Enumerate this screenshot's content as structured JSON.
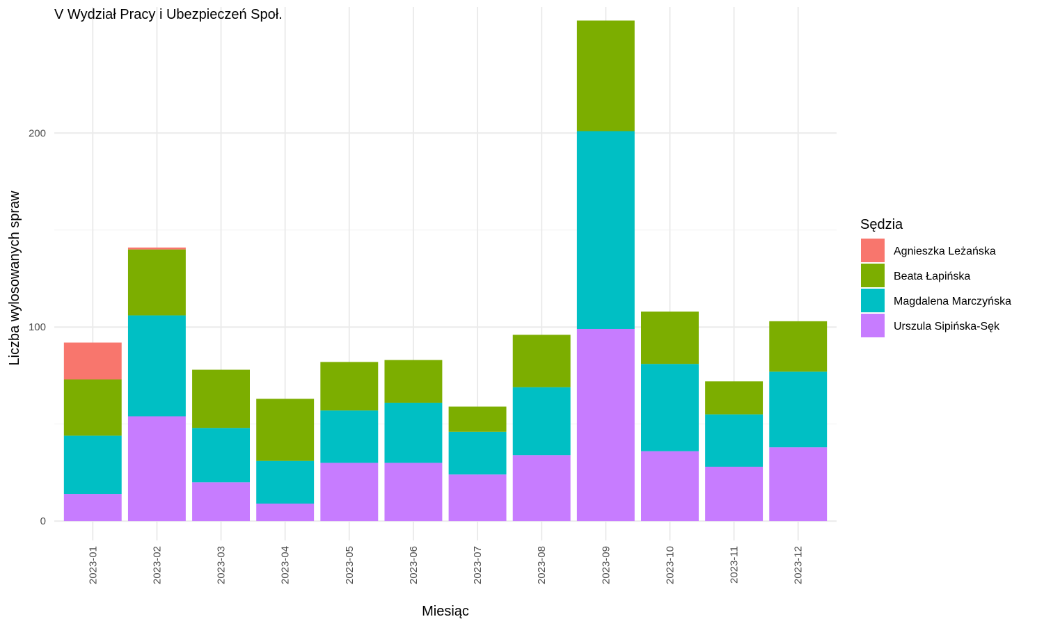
{
  "chart_data": {
    "type": "bar",
    "stacked": true,
    "title": "V Wydział Pracy i Ubezpieczeń Społ.",
    "xlabel": "Miesiąc",
    "ylabel": "Liczba wylosowanych spraw",
    "ylim": [
      -10,
      265
    ],
    "yticks": [
      0,
      100,
      200
    ],
    "grid": true,
    "legend": {
      "title": "Sędzia",
      "position": "right"
    },
    "categories": [
      "2023-01",
      "2023-02",
      "2023-03",
      "2023-04",
      "2023-05",
      "2023-06",
      "2023-07",
      "2023-08",
      "2023-09",
      "2023-10",
      "2023-11",
      "2023-12"
    ],
    "series": [
      {
        "name": "Urszula Sipińska-Sęk",
        "color": "#C77CFF",
        "values": [
          14,
          54,
          20,
          9,
          30,
          30,
          24,
          34,
          99,
          36,
          28,
          38
        ]
      },
      {
        "name": "Magdalena Marczyńska",
        "color": "#00BFC4",
        "values": [
          30,
          52,
          28,
          22,
          27,
          31,
          22,
          35,
          102,
          45,
          27,
          39
        ]
      },
      {
        "name": "Beata Łapińska",
        "color": "#7CAE00",
        "values": [
          29,
          34,
          30,
          32,
          25,
          22,
          13,
          27,
          57,
          27,
          17,
          26
        ]
      },
      {
        "name": "Agnieszka Leżańska",
        "color": "#F8766D",
        "values": [
          19,
          1,
          0,
          0,
          0,
          0,
          0,
          0,
          0,
          0,
          0,
          0
        ]
      }
    ],
    "legend_order": [
      "Agnieszka Leżańska",
      "Beata Łapińska",
      "Magdalena Marczyńska",
      "Urszula Sipińska-Sęk"
    ]
  }
}
